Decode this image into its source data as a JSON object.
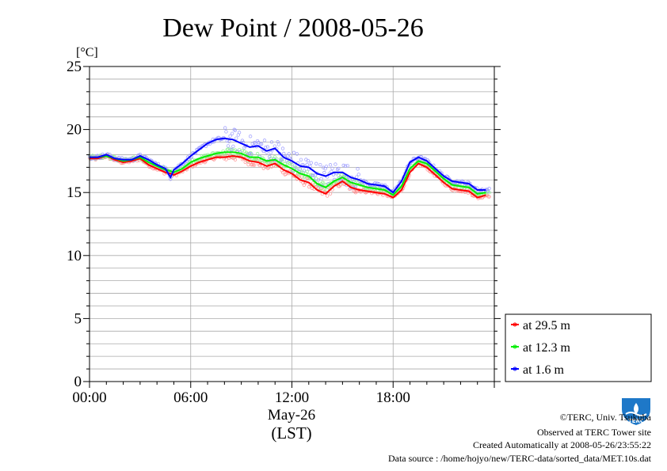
{
  "chart_data": {
    "type": "line",
    "title": "Dew Point / 2008-05-26",
    "yunit": "[°C]",
    "ylim": [
      0,
      25
    ],
    "yticks": [
      "0",
      "5",
      "10",
      "15",
      "20",
      "25"
    ],
    "xlim": [
      0,
      24
    ],
    "xticks": [
      "00:00",
      "06:00",
      "12:00",
      "18:00"
    ],
    "xlabel_date": "May-26",
    "xlabel_tz": "(LST)",
    "grid": true,
    "legend_position": "right",
    "x": [
      0,
      0.5,
      1,
      1.5,
      2,
      2.5,
      3,
      3.5,
      4,
      4.5,
      4.8,
      5,
      5.5,
      6,
      6.5,
      7,
      7.5,
      8,
      8.5,
      9,
      9.5,
      10,
      10.5,
      11,
      11.5,
      12,
      12.5,
      13,
      13.5,
      14,
      14.5,
      15,
      15.5,
      16,
      16.5,
      17,
      17.5,
      18,
      18.5,
      19,
      19.5,
      20,
      20.5,
      21,
      21.5,
      22,
      22.5,
      23,
      23.5
    ],
    "series": [
      {
        "name": "at 29.5 m",
        "color": "#ff0000",
        "values": [
          17.7,
          17.7,
          17.9,
          17.6,
          17.4,
          17.5,
          17.7,
          17.2,
          16.9,
          16.6,
          16.5,
          16.4,
          16.7,
          17.1,
          17.4,
          17.6,
          17.8,
          17.8,
          17.9,
          17.8,
          17.5,
          17.4,
          17.1,
          17.3,
          16.8,
          16.5,
          16.0,
          15.8,
          15.2,
          14.9,
          15.5,
          15.9,
          15.4,
          15.2,
          15.1,
          15.0,
          14.9,
          14.6,
          15.2,
          16.6,
          17.3,
          17.0,
          16.4,
          15.8,
          15.3,
          15.2,
          15.1,
          14.6,
          14.8
        ]
      },
      {
        "name": "at 12.3 m",
        "color": "#00ee00",
        "values": [
          17.8,
          17.8,
          17.9,
          17.7,
          17.5,
          17.6,
          17.8,
          17.4,
          17.1,
          16.8,
          16.7,
          16.6,
          16.9,
          17.4,
          17.7,
          17.9,
          18.1,
          18.2,
          18.2,
          18.1,
          17.8,
          17.8,
          17.5,
          17.6,
          17.2,
          16.9,
          16.5,
          16.3,
          15.7,
          15.4,
          15.9,
          16.2,
          15.8,
          15.6,
          15.4,
          15.3,
          15.2,
          14.8,
          15.5,
          16.9,
          17.5,
          17.3,
          16.7,
          16.1,
          15.6,
          15.5,
          15.4,
          14.9,
          15.0
        ]
      },
      {
        "name": "at 1.6 m",
        "color": "#0000ff",
        "values": [
          17.8,
          17.8,
          18.0,
          17.7,
          17.6,
          17.6,
          17.9,
          17.6,
          17.2,
          16.9,
          16.2,
          16.8,
          17.3,
          17.9,
          18.4,
          18.9,
          19.2,
          19.3,
          19.2,
          18.9,
          18.6,
          18.7,
          18.3,
          18.5,
          17.8,
          17.5,
          17.1,
          17.0,
          16.5,
          16.3,
          16.6,
          16.6,
          16.2,
          16.0,
          15.7,
          15.6,
          15.5,
          15.0,
          15.9,
          17.4,
          17.8,
          17.5,
          16.9,
          16.3,
          15.9,
          15.8,
          15.7,
          15.2,
          15.2
        ]
      }
    ]
  },
  "footer": {
    "copyright": "©TERC, Univ. Tsukuba",
    "observed": "Observed at TERC Tower site",
    "created": "Created Automatically at 2008-05-26/23:55:22",
    "source": "Data source : /home/hojyo/new/TERC-data/sorted_data/MET.10s.dat"
  },
  "logo": {
    "label": "TERC",
    "color": "#1e78c8"
  }
}
